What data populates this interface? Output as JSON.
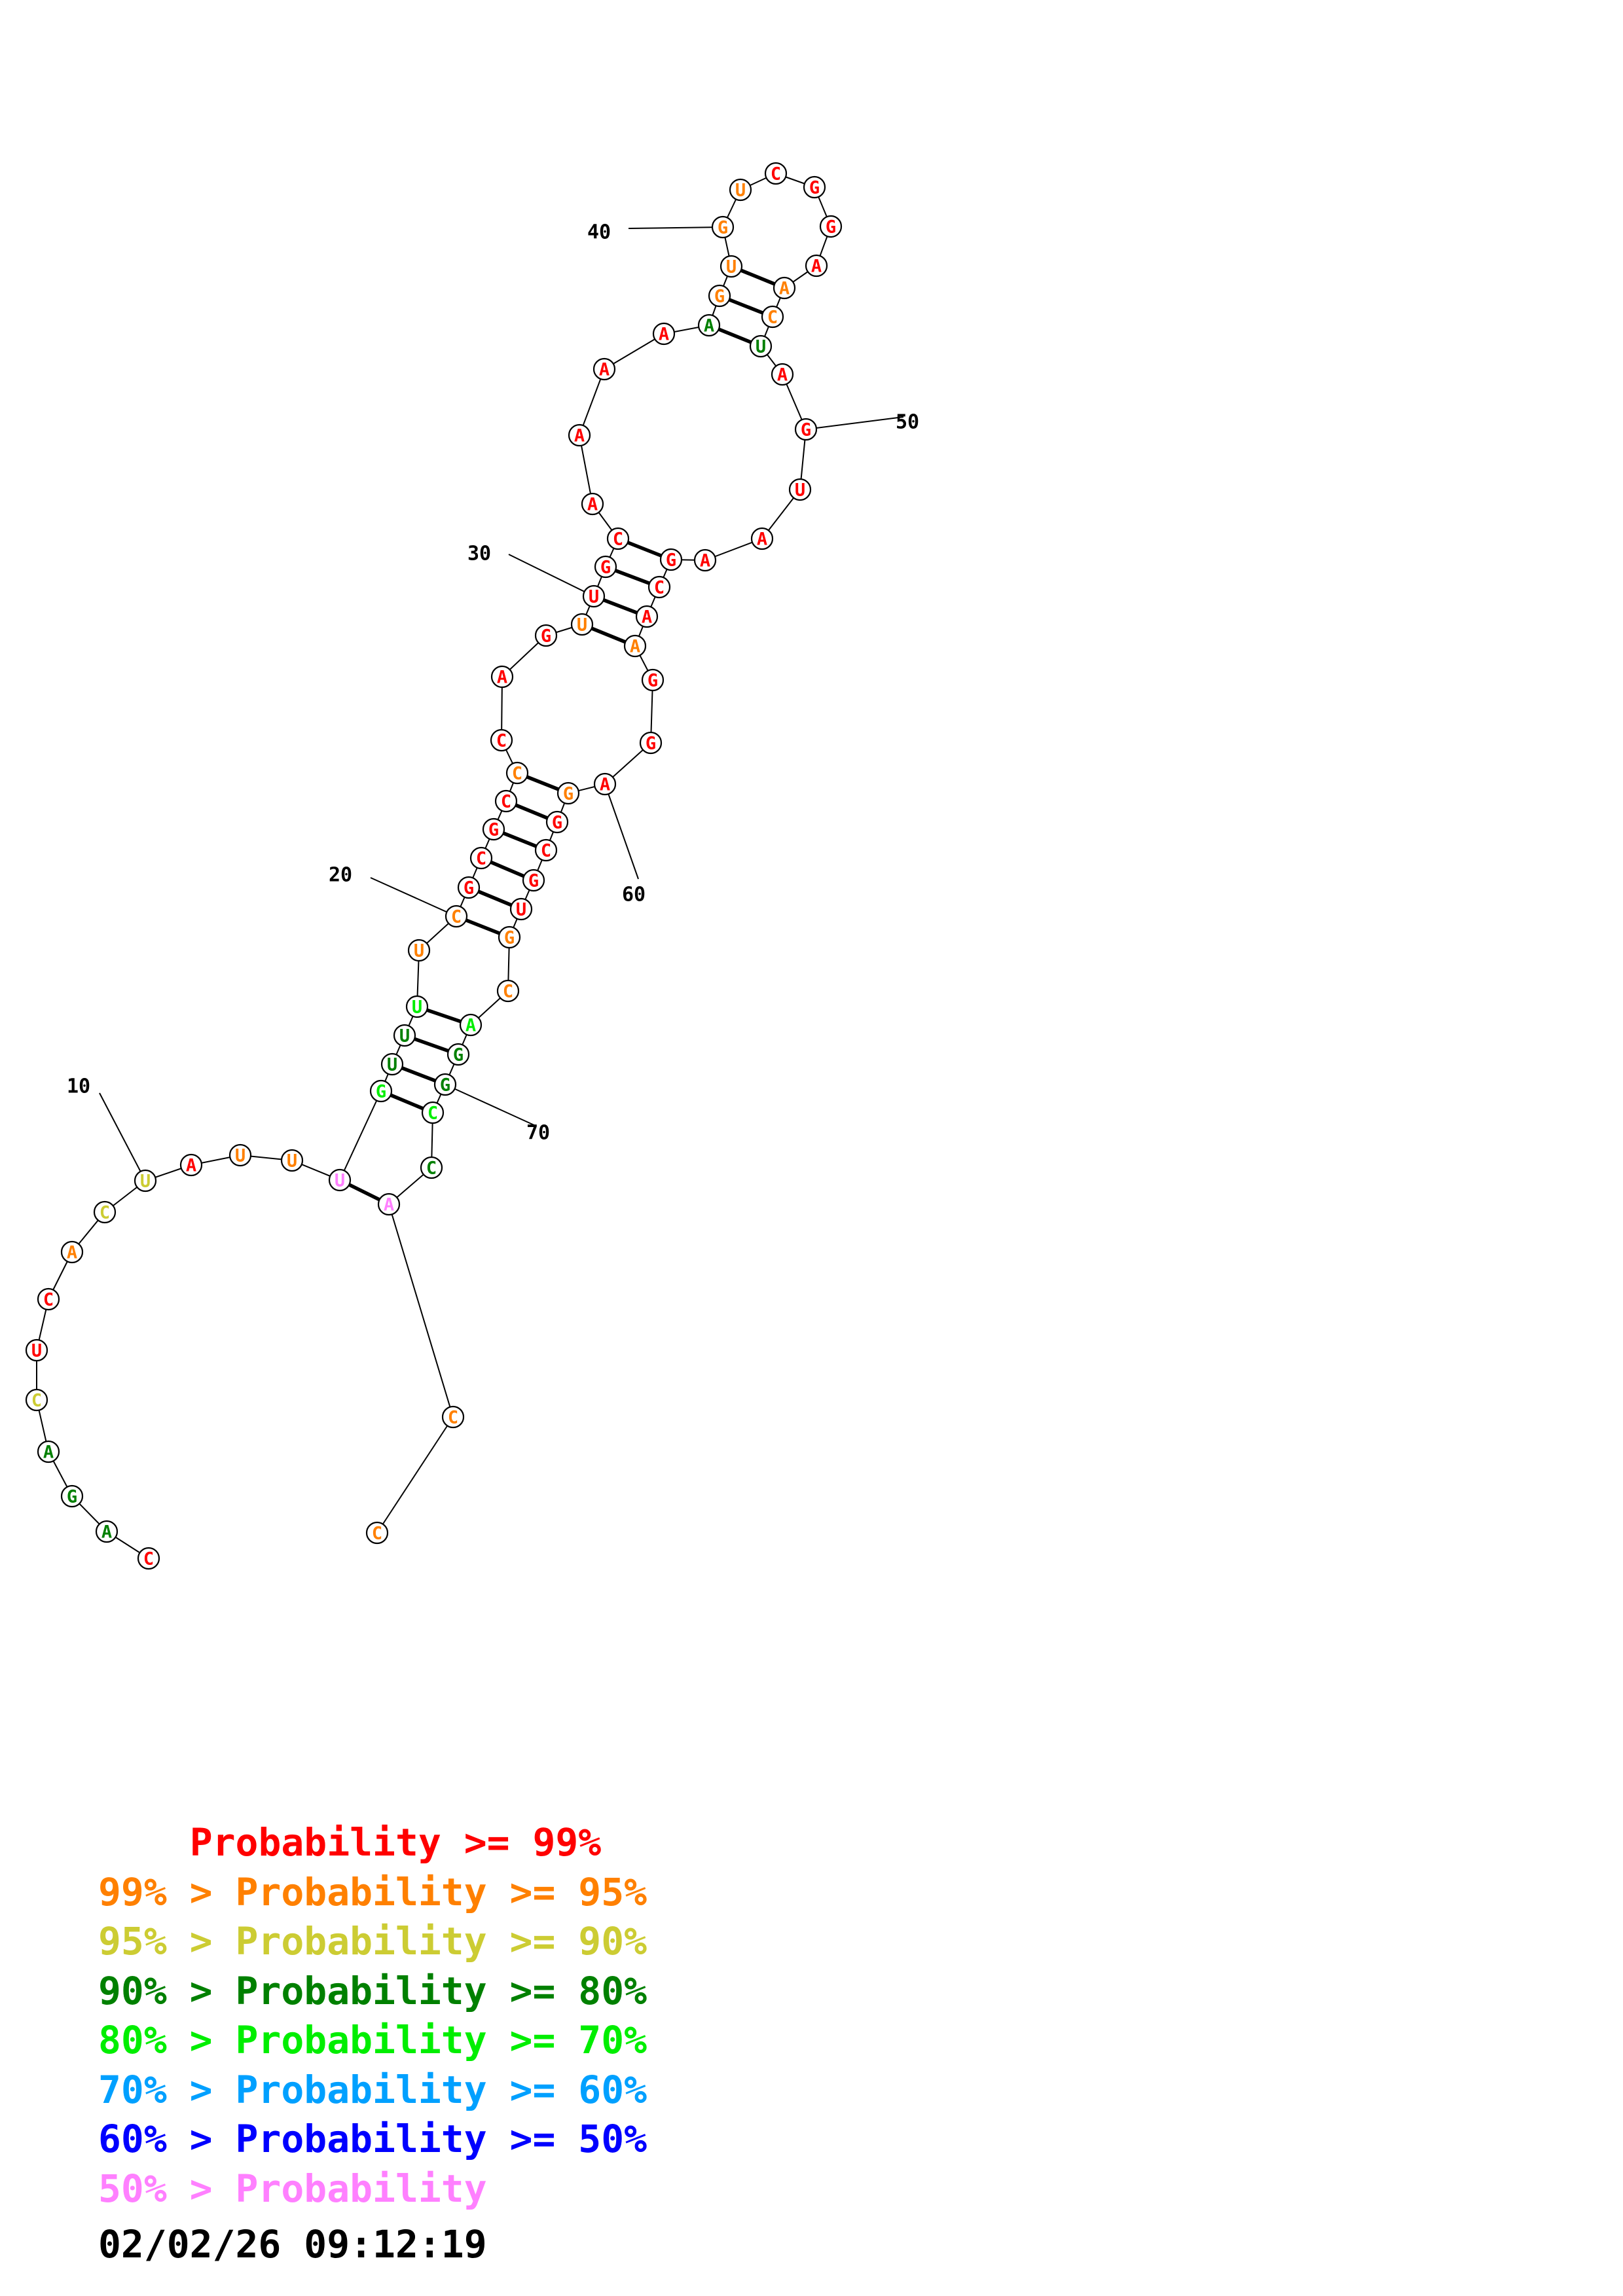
{
  "palette": {
    "red": "#ff0000",
    "orange": "#ff8000",
    "yellow": "#cccc33",
    "dkgreen": "#008000",
    "green": "#00ee00",
    "cyan": "#00a0ff",
    "blue": "#0000ff",
    "pink": "#ff80ff"
  },
  "nucleotides": [
    {
      "n": 1,
      "base": "C",
      "color": "red"
    },
    {
      "n": 2,
      "base": "A",
      "color": "dkgreen"
    },
    {
      "n": 3,
      "base": "G",
      "color": "dkgreen"
    },
    {
      "n": 4,
      "base": "A",
      "color": "dkgreen"
    },
    {
      "n": 5,
      "base": "C",
      "color": "yellow"
    },
    {
      "n": 6,
      "base": "U",
      "color": "red"
    },
    {
      "n": 7,
      "base": "C",
      "color": "red"
    },
    {
      "n": 8,
      "base": "A",
      "color": "orange"
    },
    {
      "n": 9,
      "base": "C",
      "color": "yellow"
    },
    {
      "n": 10,
      "base": "U",
      "color": "yellow"
    },
    {
      "n": 11,
      "base": "A",
      "color": "red"
    },
    {
      "n": 12,
      "base": "U",
      "color": "orange"
    },
    {
      "n": 13,
      "base": "U",
      "color": "orange"
    },
    {
      "n": 14,
      "base": "U",
      "color": "pink"
    },
    {
      "n": 15,
      "base": "G",
      "color": "green"
    },
    {
      "n": 16,
      "base": "U",
      "color": "dkgreen"
    },
    {
      "n": 17,
      "base": "U",
      "color": "dkgreen"
    },
    {
      "n": 18,
      "base": "U",
      "color": "green"
    },
    {
      "n": 19,
      "base": "U",
      "color": "orange"
    },
    {
      "n": 20,
      "base": "C",
      "color": "orange"
    },
    {
      "n": 21,
      "base": "G",
      "color": "red"
    },
    {
      "n": 22,
      "base": "C",
      "color": "red"
    },
    {
      "n": 23,
      "base": "G",
      "color": "red"
    },
    {
      "n": 24,
      "base": "C",
      "color": "red"
    },
    {
      "n": 25,
      "base": "C",
      "color": "orange"
    },
    {
      "n": 26,
      "base": "C",
      "color": "red"
    },
    {
      "n": 27,
      "base": "A",
      "color": "red"
    },
    {
      "n": 28,
      "base": "G",
      "color": "red"
    },
    {
      "n": 29,
      "base": "U",
      "color": "orange"
    },
    {
      "n": 30,
      "base": "U",
      "color": "red"
    },
    {
      "n": 31,
      "base": "G",
      "color": "red"
    },
    {
      "n": 32,
      "base": "C",
      "color": "red"
    },
    {
      "n": 33,
      "base": "A",
      "color": "red"
    },
    {
      "n": 34,
      "base": "A",
      "color": "red"
    },
    {
      "n": 35,
      "base": "A",
      "color": "red"
    },
    {
      "n": 36,
      "base": "A",
      "color": "red"
    },
    {
      "n": 37,
      "base": "A",
      "color": "dkgreen"
    },
    {
      "n": 38,
      "base": "G",
      "color": "orange"
    },
    {
      "n": 39,
      "base": "U",
      "color": "orange"
    },
    {
      "n": 40,
      "base": "G",
      "color": "orange"
    },
    {
      "n": 41,
      "base": "U",
      "color": "orange"
    },
    {
      "n": 42,
      "base": "C",
      "color": "red"
    },
    {
      "n": 43,
      "base": "G",
      "color": "red"
    },
    {
      "n": 44,
      "base": "G",
      "color": "red"
    },
    {
      "n": 45,
      "base": "A",
      "color": "red"
    },
    {
      "n": 46,
      "base": "A",
      "color": "orange"
    },
    {
      "n": 47,
      "base": "C",
      "color": "orange"
    },
    {
      "n": 48,
      "base": "U",
      "color": "dkgreen"
    },
    {
      "n": 49,
      "base": "A",
      "color": "red"
    },
    {
      "n": 50,
      "base": "G",
      "color": "red"
    },
    {
      "n": 51,
      "base": "U",
      "color": "red"
    },
    {
      "n": 52,
      "base": "A",
      "color": "red"
    },
    {
      "n": 53,
      "base": "A",
      "color": "red"
    },
    {
      "n": 54,
      "base": "G",
      "color": "red"
    },
    {
      "n": 55,
      "base": "C",
      "color": "red"
    },
    {
      "n": 56,
      "base": "A",
      "color": "red"
    },
    {
      "n": 57,
      "base": "A",
      "color": "orange"
    },
    {
      "n": 58,
      "base": "G",
      "color": "red"
    },
    {
      "n": 59,
      "base": "G",
      "color": "red"
    },
    {
      "n": 60,
      "base": "A",
      "color": "red"
    },
    {
      "n": 61,
      "base": "G",
      "color": "orange"
    },
    {
      "n": 62,
      "base": "G",
      "color": "red"
    },
    {
      "n": 63,
      "base": "C",
      "color": "red"
    },
    {
      "n": 64,
      "base": "G",
      "color": "red"
    },
    {
      "n": 65,
      "base": "U",
      "color": "red"
    },
    {
      "n": 66,
      "base": "G",
      "color": "orange"
    },
    {
      "n": 67,
      "base": "C",
      "color": "orange"
    },
    {
      "n": 68,
      "base": "A",
      "color": "green"
    },
    {
      "n": 69,
      "base": "G",
      "color": "dkgreen"
    },
    {
      "n": 70,
      "base": "G",
      "color": "dkgreen"
    },
    {
      "n": 71,
      "base": "C",
      "color": "green"
    },
    {
      "n": 72,
      "base": "C",
      "color": "dkgreen"
    },
    {
      "n": 73,
      "base": "A",
      "color": "pink"
    },
    {
      "n": 74,
      "base": "C",
      "color": "orange"
    },
    {
      "n": 75,
      "base": "C",
      "color": "orange"
    }
  ],
  "base_pairs": [
    [
      14,
      73
    ],
    [
      15,
      71
    ],
    [
      16,
      70
    ],
    [
      17,
      69
    ],
    [
      18,
      68
    ],
    [
      20,
      66
    ],
    [
      21,
      65
    ],
    [
      22,
      64
    ],
    [
      23,
      63
    ],
    [
      24,
      62
    ],
    [
      25,
      61
    ],
    [
      29,
      57
    ],
    [
      30,
      56
    ],
    [
      31,
      55
    ],
    [
      32,
      54
    ],
    [
      37,
      48
    ],
    [
      38,
      47
    ],
    [
      39,
      46
    ]
  ],
  "index_labels": [
    {
      "n": 10,
      "text": "10"
    },
    {
      "n": 20,
      "text": "20"
    },
    {
      "n": 30,
      "text": "30"
    },
    {
      "n": 40,
      "text": "40"
    },
    {
      "n": 50,
      "text": "50"
    },
    {
      "n": 60,
      "text": "60"
    },
    {
      "n": 70,
      "text": "70"
    }
  ],
  "legend": [
    {
      "prefix": "    ",
      "range": "Probability >= 99%",
      "color": "#ff0000"
    },
    {
      "prefix": "99% > ",
      "range": "Probability >= 95%",
      "color": "#ff8000"
    },
    {
      "prefix": "95% > ",
      "range": "Probability >= 90%",
      "color": "#cccc33"
    },
    {
      "prefix": "90% > ",
      "range": "Probability >= 80%",
      "color": "#008000"
    },
    {
      "prefix": "80% > ",
      "range": "Probability >= 70%",
      "color": "#00ee00"
    },
    {
      "prefix": "70% > ",
      "range": "Probability >= 60%",
      "color": "#00a0ff"
    },
    {
      "prefix": "60% > ",
      "range": "Probability >= 50%",
      "color": "#0000ff"
    },
    {
      "prefix": "50% > ",
      "range": "Probability",
      "color": "#ff80ff"
    }
  ],
  "timestamp": "02/02/26 09:12:19"
}
